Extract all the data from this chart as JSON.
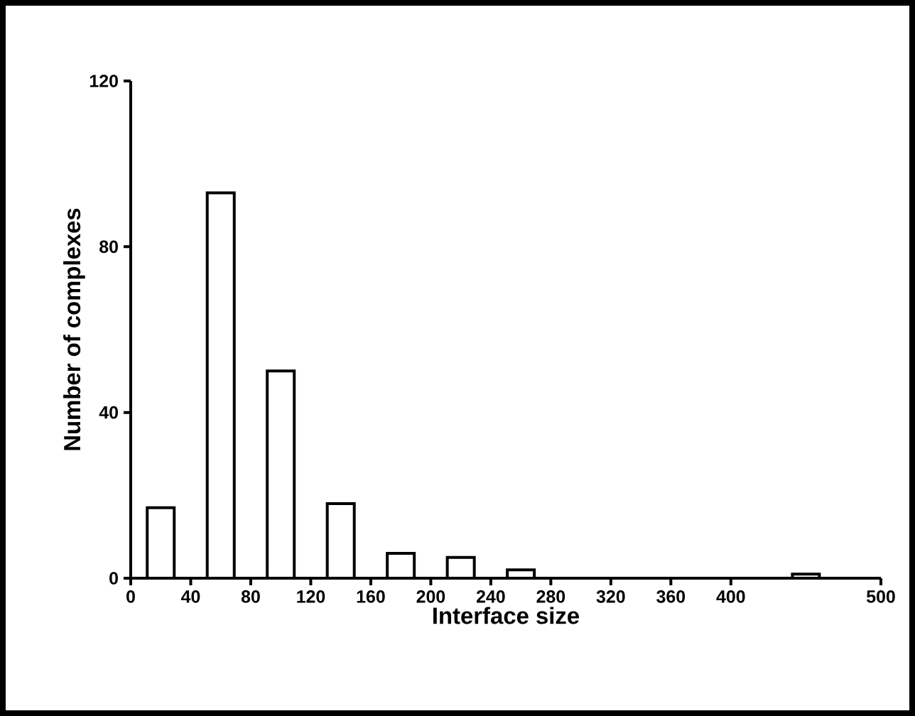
{
  "chart_data": {
    "type": "bar",
    "xlabel": "Interface size",
    "ylabel": "Number of complexes",
    "x": [
      20,
      60,
      100,
      140,
      180,
      220,
      260,
      450
    ],
    "values": [
      17,
      93,
      50,
      18,
      6,
      5,
      2,
      1
    ],
    "color": "#ffffff",
    "xlim": [
      0,
      500
    ],
    "xticks": [
      0,
      40,
      80,
      120,
      160,
      200,
      240,
      280,
      320,
      360,
      400,
      500
    ],
    "ylim": [
      0,
      120
    ],
    "yticks": [
      0,
      40,
      80,
      120
    ],
    "grid": false
  }
}
